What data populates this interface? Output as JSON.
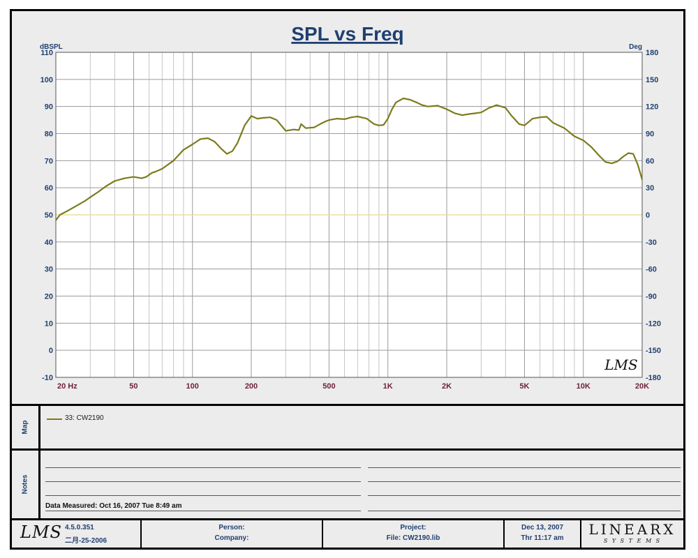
{
  "chart_data": {
    "type": "line",
    "title": "SPL vs Freq",
    "ylabel_left": "dBSPL",
    "ylabel_right": "Deg",
    "x_scale": "log",
    "xlim": [
      20,
      20000
    ],
    "ylim_left": [
      -10,
      110
    ],
    "ylim_right": [
      -180,
      180
    ],
    "x_tick_labels": [
      {
        "value": 20,
        "label": "20 Hz"
      },
      {
        "value": 50,
        "label": "50"
      },
      {
        "value": 100,
        "label": "100"
      },
      {
        "value": 200,
        "label": "200"
      },
      {
        "value": 500,
        "label": "500"
      },
      {
        "value": 1000,
        "label": "1K"
      },
      {
        "value": 2000,
        "label": "2K"
      },
      {
        "value": 5000,
        "label": "5K"
      },
      {
        "value": 10000,
        "label": "10K"
      },
      {
        "value": 20000,
        "label": "20K"
      }
    ],
    "y_left_ticks": [
      110,
      100,
      90,
      80,
      70,
      60,
      50,
      40,
      30,
      20,
      10,
      0,
      -10
    ],
    "y_right_ticks": [
      180,
      150,
      120,
      90,
      60,
      30,
      0,
      -30,
      -60,
      -90,
      -120,
      -150,
      -180
    ],
    "grid": true,
    "colors": {
      "series": "#7b7b1c",
      "zero_line": "#e8e0a0",
      "major_grid": "#9a9a9a",
      "minor_grid": "#c4c4c4",
      "tick_x": "#6d1e3c",
      "tick_y": "#1f3f70"
    },
    "series": [
      {
        "name": "33: CW2190",
        "x": [
          20,
          21,
          23,
          25,
          28,
          30,
          33,
          36,
          40,
          45,
          50,
          55,
          58,
          62,
          65,
          70,
          80,
          90,
          100,
          110,
          120,
          130,
          140,
          150,
          160,
          170,
          185,
          200,
          215,
          230,
          250,
          270,
          300,
          330,
          350,
          360,
          380,
          420,
          450,
          480,
          500,
          550,
          600,
          650,
          700,
          780,
          850,
          900,
          950,
          1000,
          1050,
          1100,
          1200,
          1300,
          1400,
          1500,
          1600,
          1800,
          2000,
          2200,
          2400,
          2600,
          2800,
          3000,
          3300,
          3600,
          4000,
          4300,
          4700,
          5000,
          5500,
          6000,
          6500,
          7000,
          8000,
          9000,
          10000,
          11000,
          12000,
          13000,
          14000,
          15000,
          16000,
          17000,
          18000,
          19000,
          20000
        ],
        "y": [
          48,
          50,
          51.5,
          53,
          55,
          56.5,
          58.5,
          60.5,
          62.5,
          63.5,
          64,
          63.5,
          64,
          65.5,
          66,
          67,
          70,
          74,
          76,
          78,
          78.3,
          77,
          74.5,
          72.5,
          73.5,
          76.5,
          83,
          86.5,
          85.5,
          85.8,
          86,
          85,
          81,
          81.5,
          81.3,
          83.5,
          82,
          82.3,
          83.5,
          84.5,
          85,
          85.5,
          85.3,
          86,
          86.3,
          85.5,
          83.5,
          83,
          83.2,
          85.5,
          89,
          91.5,
          93,
          92.5,
          91.5,
          90.5,
          90,
          90.3,
          89,
          87.5,
          86.8,
          87.2,
          87.5,
          87.8,
          89.5,
          90.5,
          89.5,
          86.5,
          83.5,
          83,
          85.5,
          86,
          86.2,
          84,
          82,
          79,
          77.5,
          75,
          72,
          69.5,
          69,
          69.8,
          71.5,
          72.8,
          72.5,
          68.5,
          63
        ]
      }
    ]
  },
  "legend": {
    "entry": "33: CW2190"
  },
  "panels": {
    "map_label": "Map",
    "notes_label": "Notes"
  },
  "notes": {
    "measured": "Data Measured: Oct 16, 2007  Tue  8:49 am"
  },
  "chart_watermark": "LMS",
  "footer": {
    "logo": "LMS",
    "version": "4.5.0.351",
    "build_date": "二月-25-2006",
    "person": "Person:",
    "company": "Company:",
    "project": "Project:",
    "file": "File: CW2190.lib",
    "date": "Dec 13, 2007",
    "time": "Thr 11:17 am",
    "brand": "LINEARX",
    "brand_sub": "S Y S T E M S"
  }
}
